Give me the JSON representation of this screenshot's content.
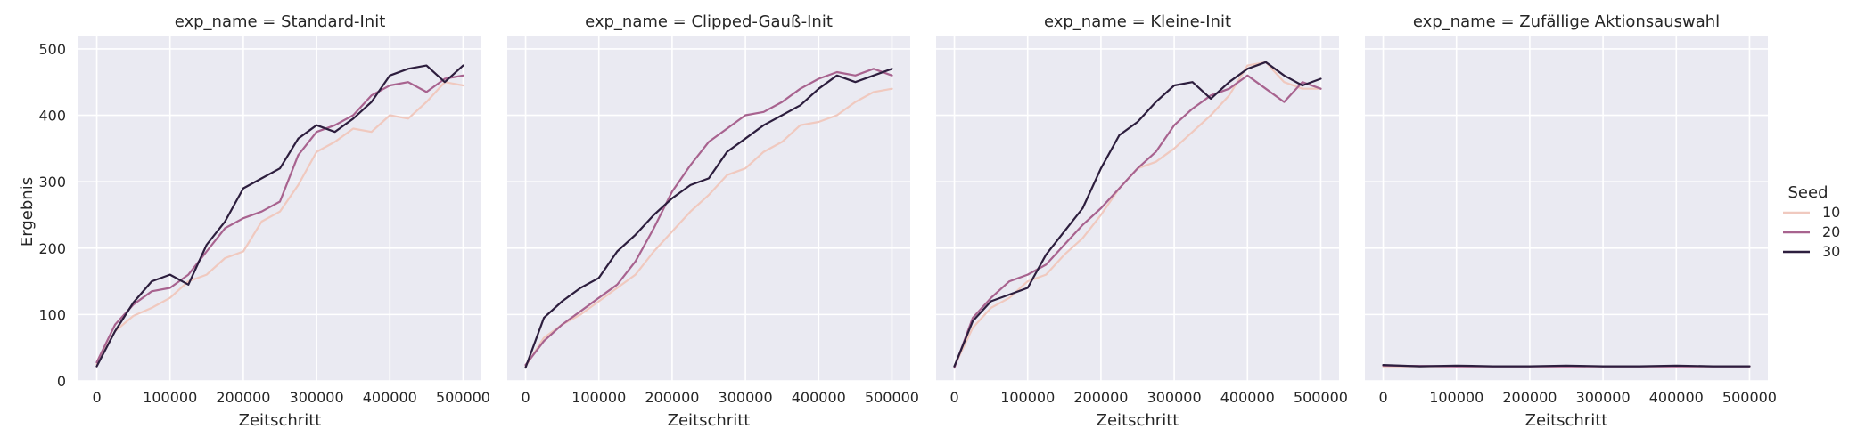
{
  "chart_data": {
    "type": "line",
    "ylabel": "Ergebnis",
    "xlabel": "Zeitschritt",
    "xlim": [
      -25000,
      525000
    ],
    "ylim": [
      0,
      520
    ],
    "x_ticks": [
      0,
      100000,
      200000,
      300000,
      400000,
      500000
    ],
    "x_tick_labels": [
      "0",
      "100000",
      "200000",
      "300000",
      "400000",
      "500000"
    ],
    "y_ticks": [
      0,
      100,
      200,
      300,
      400,
      500
    ],
    "y_tick_labels": [
      "0",
      "100",
      "200",
      "300",
      "400",
      "500"
    ],
    "grid": true,
    "legend": {
      "title": "Seed",
      "placement": "right",
      "entries": [
        {
          "label": "10",
          "color": "#f0c9bf"
        },
        {
          "label": "20",
          "color": "#a8638f"
        },
        {
          "label": "30",
          "color": "#2d1e3e"
        }
      ]
    },
    "panels": [
      {
        "title": "exp_name = Standard-Init",
        "series": [
          {
            "name": "10",
            "x": [
              0,
              25000,
              50000,
              75000,
              100000,
              125000,
              150000,
              175000,
              200000,
              225000,
              250000,
              275000,
              300000,
              325000,
              350000,
              375000,
              400000,
              425000,
              450000,
              475000,
              500000
            ],
            "y": [
              25,
              75,
              98,
              110,
              125,
              150,
              160,
              185,
              195,
              240,
              255,
              295,
              345,
              360,
              380,
              375,
              400,
              395,
              420,
              450,
              445
            ]
          },
          {
            "name": "20",
            "x": [
              0,
              25000,
              50000,
              75000,
              100000,
              125000,
              150000,
              175000,
              200000,
              225000,
              250000,
              275000,
              300000,
              325000,
              350000,
              375000,
              400000,
              425000,
              450000,
              475000,
              500000
            ],
            "y": [
              28,
              85,
              115,
              135,
              140,
              160,
              195,
              230,
              245,
              255,
              270,
              340,
              375,
              385,
              400,
              430,
              445,
              450,
              435,
              455,
              460
            ]
          },
          {
            "name": "30",
            "x": [
              0,
              25000,
              50000,
              75000,
              100000,
              125000,
              150000,
              175000,
              200000,
              225000,
              250000,
              275000,
              300000,
              325000,
              350000,
              375000,
              400000,
              425000,
              450000,
              475000,
              500000
            ],
            "y": [
              22,
              75,
              118,
              150,
              160,
              145,
              205,
              240,
              290,
              305,
              320,
              365,
              385,
              375,
              395,
              420,
              460,
              470,
              475,
              450,
              475
            ]
          }
        ]
      },
      {
        "title": "exp_name = Clipped-Gauß-Init",
        "series": [
          {
            "name": "10",
            "x": [
              0,
              25000,
              50000,
              75000,
              100000,
              125000,
              150000,
              175000,
              200000,
              225000,
              250000,
              275000,
              300000,
              325000,
              350000,
              375000,
              400000,
              425000,
              450000,
              475000,
              500000
            ],
            "y": [
              22,
              65,
              85,
              100,
              120,
              140,
              160,
              195,
              225,
              255,
              280,
              310,
              320,
              345,
              360,
              385,
              390,
              400,
              420,
              435,
              440
            ]
          },
          {
            "name": "20",
            "x": [
              0,
              25000,
              50000,
              75000,
              100000,
              125000,
              150000,
              175000,
              200000,
              225000,
              250000,
              275000,
              300000,
              325000,
              350000,
              375000,
              400000,
              425000,
              450000,
              475000,
              500000
            ],
            "y": [
              24,
              60,
              85,
              105,
              125,
              145,
              180,
              230,
              285,
              325,
              360,
              380,
              400,
              405,
              420,
              440,
              455,
              465,
              460,
              470,
              460
            ]
          },
          {
            "name": "30",
            "x": [
              0,
              25000,
              50000,
              75000,
              100000,
              125000,
              150000,
              175000,
              200000,
              225000,
              250000,
              275000,
              300000,
              325000,
              350000,
              375000,
              400000,
              425000,
              450000,
              475000,
              500000
            ],
            "y": [
              20,
              95,
              120,
              140,
              155,
              195,
              220,
              250,
              275,
              295,
              305,
              345,
              365,
              385,
              400,
              415,
              440,
              460,
              450,
              460,
              470
            ]
          }
        ]
      },
      {
        "title": "exp_name = Kleine-Init",
        "series": [
          {
            "name": "10",
            "x": [
              0,
              25000,
              50000,
              75000,
              100000,
              125000,
              150000,
              175000,
              200000,
              225000,
              250000,
              275000,
              300000,
              325000,
              350000,
              375000,
              400000,
              425000,
              450000,
              475000,
              500000
            ],
            "y": [
              22,
              80,
              110,
              125,
              150,
              160,
              190,
              215,
              250,
              290,
              320,
              330,
              350,
              375,
              400,
              430,
              475,
              480,
              450,
              440,
              440
            ]
          },
          {
            "name": "20",
            "x": [
              0,
              25000,
              50000,
              75000,
              100000,
              125000,
              150000,
              175000,
              200000,
              225000,
              250000,
              275000,
              300000,
              325000,
              350000,
              375000,
              400000,
              425000,
              450000,
              475000,
              500000
            ],
            "y": [
              20,
              95,
              125,
              150,
              160,
              175,
              205,
              235,
              260,
              290,
              320,
              345,
              385,
              410,
              430,
              440,
              460,
              440,
              420,
              450,
              440
            ]
          },
          {
            "name": "30",
            "x": [
              0,
              25000,
              50000,
              75000,
              100000,
              125000,
              150000,
              175000,
              200000,
              225000,
              250000,
              275000,
              300000,
              325000,
              350000,
              375000,
              400000,
              425000,
              450000,
              475000,
              500000
            ],
            "y": [
              22,
              90,
              120,
              130,
              140,
              190,
              225,
              260,
              320,
              370,
              390,
              420,
              445,
              450,
              425,
              450,
              470,
              480,
              460,
              445,
              455
            ]
          }
        ]
      },
      {
        "title": "exp_name = Zufällige Aktionsauswahl",
        "series": [
          {
            "name": "10",
            "x": [
              0,
              100000,
              200000,
              300000,
              400000,
              500000
            ],
            "y": [
              22,
              22,
              22,
              22,
              22,
              22
            ]
          },
          {
            "name": "20",
            "x": [
              0,
              100000,
              200000,
              300000,
              400000,
              500000
            ],
            "y": [
              23,
              22,
              22,
              22,
              22,
              22
            ]
          },
          {
            "name": "30",
            "x": [
              0,
              50000,
              100000,
              150000,
              200000,
              250000,
              300000,
              350000,
              400000,
              450000,
              500000
            ],
            "y": [
              24,
              22,
              23,
              22,
              22,
              23,
              22,
              22,
              23,
              22,
              22
            ]
          }
        ]
      }
    ]
  }
}
